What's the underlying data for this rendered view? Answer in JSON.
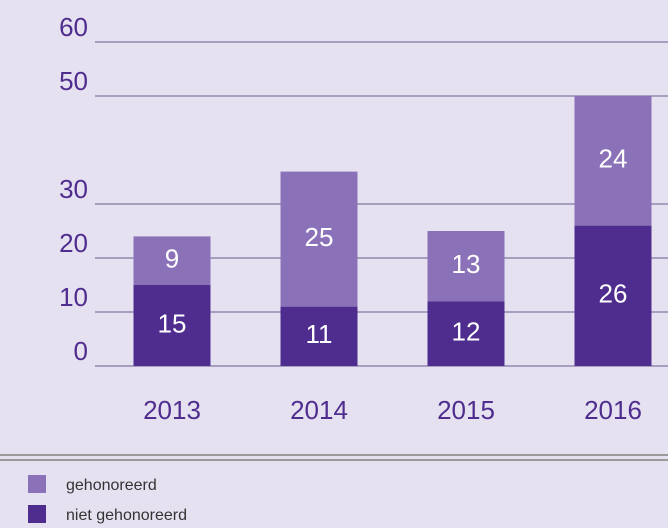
{
  "chart_data": {
    "type": "bar",
    "stacked": true,
    "categories": [
      "2013",
      "2014",
      "2015",
      "2016"
    ],
    "series": [
      {
        "name": "niet gehonoreerd",
        "color": "#4f2d8f",
        "values": [
          15,
          11,
          12,
          26
        ]
      },
      {
        "name": "gehonoreerd",
        "color": "#8b72b8",
        "values": [
          9,
          25,
          13,
          24
        ]
      }
    ],
    "ylim": [
      0,
      60
    ],
    "yticks": [
      0,
      10,
      20,
      30,
      50,
      60
    ],
    "grid": true
  }
}
